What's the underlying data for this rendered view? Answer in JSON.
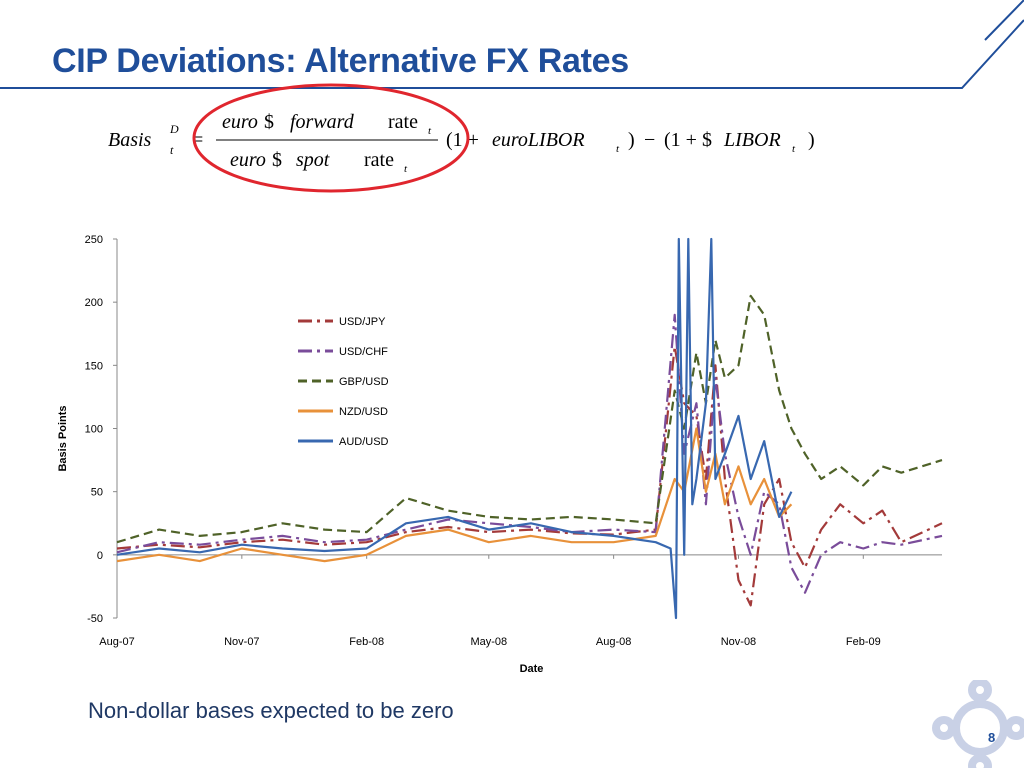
{
  "slide": {
    "title": "CIP Deviations: Alternative FX Rates",
    "caption": "Non-dollar bases expected to be zero",
    "page_number": "8"
  },
  "formula": {
    "lhs_main": "Basis",
    "lhs_sup": "D",
    "lhs_sub": "t",
    "equals": "=",
    "num_euro": "euro",
    "num_dollar": "$",
    "num_forward": "forward",
    "num_rate": "rate",
    "num_sub": "t",
    "den_euro": "euro",
    "den_dollar": "$",
    "den_spot": "spot",
    "den_rate": "rate",
    "den_sub": "t",
    "mid_open": "(1 + ",
    "mid_euro": "euroLIBOR",
    "mid_sub": "t",
    "mid_close": ")",
    "minus": "−",
    "right_open": "(1 + $",
    "right_libor": "LIBOR",
    "right_sub": "t",
    "right_close": ")"
  },
  "colors": {
    "title": "#1f4e9a",
    "header_rule": "#1f4e9a",
    "highlight_ellipse": "#e0262e"
  },
  "chart_data": {
    "type": "line",
    "xlabel": "Date",
    "ylabel": "Basis Points",
    "ylim": [
      -50,
      250
    ],
    "yticks": [
      -50,
      0,
      50,
      100,
      150,
      200,
      250
    ],
    "xlim": [
      "2007-08-01",
      "2009-03-31"
    ],
    "xticks": [
      {
        "date": "2007-08-01",
        "label": "Aug-07"
      },
      {
        "date": "2007-11-01",
        "label": "Nov-07"
      },
      {
        "date": "2008-02-01",
        "label": "Feb-08"
      },
      {
        "date": "2008-05-01",
        "label": "May-08"
      },
      {
        "date": "2008-08-01",
        "label": "Aug-08"
      },
      {
        "date": "2008-11-01",
        "label": "Nov-08"
      },
      {
        "date": "2009-02-01",
        "label": "Feb-09"
      }
    ],
    "grid": false,
    "legend_position": "upper-center",
    "series": [
      {
        "name": "USD/JPY",
        "color": "#a33a3a",
        "dash": "14,5,3,5",
        "points": [
          [
            "2007-08-01",
            5
          ],
          [
            "2007-09-01",
            8
          ],
          [
            "2007-10-01",
            6
          ],
          [
            "2007-11-01",
            10
          ],
          [
            "2007-12-01",
            12
          ],
          [
            "2008-01-01",
            8
          ],
          [
            "2008-02-01",
            10
          ],
          [
            "2008-03-01",
            18
          ],
          [
            "2008-04-01",
            22
          ],
          [
            "2008-05-01",
            18
          ],
          [
            "2008-06-01",
            20
          ],
          [
            "2008-07-01",
            17
          ],
          [
            "2008-08-01",
            16
          ],
          [
            "2008-09-01",
            20
          ],
          [
            "2008-09-15",
            165
          ],
          [
            "2008-09-22",
            120
          ],
          [
            "2008-10-01",
            110
          ],
          [
            "2008-10-08",
            60
          ],
          [
            "2008-10-15",
            150
          ],
          [
            "2008-10-22",
            60
          ],
          [
            "2008-11-01",
            -20
          ],
          [
            "2008-11-10",
            -40
          ],
          [
            "2008-11-20",
            40
          ],
          [
            "2008-12-01",
            60
          ],
          [
            "2008-12-10",
            10
          ],
          [
            "2008-12-20",
            -10
          ],
          [
            "2009-01-01",
            20
          ],
          [
            "2009-01-15",
            40
          ],
          [
            "2009-02-01",
            25
          ],
          [
            "2009-02-15",
            35
          ],
          [
            "2009-03-01",
            10
          ],
          [
            "2009-03-31",
            25
          ]
        ]
      },
      {
        "name": "USD/CHF",
        "color": "#7a4c9a",
        "dash": "14,5,3,5",
        "points": [
          [
            "2007-08-01",
            2
          ],
          [
            "2007-09-01",
            10
          ],
          [
            "2007-10-01",
            8
          ],
          [
            "2007-11-01",
            12
          ],
          [
            "2007-12-01",
            15
          ],
          [
            "2008-01-01",
            10
          ],
          [
            "2008-02-01",
            12
          ],
          [
            "2008-03-01",
            20
          ],
          [
            "2008-04-01",
            28
          ],
          [
            "2008-05-01",
            25
          ],
          [
            "2008-06-01",
            22
          ],
          [
            "2008-07-01",
            18
          ],
          [
            "2008-08-01",
            20
          ],
          [
            "2008-09-01",
            18
          ],
          [
            "2008-09-15",
            190
          ],
          [
            "2008-09-22",
            80
          ],
          [
            "2008-10-01",
            120
          ],
          [
            "2008-10-08",
            40
          ],
          [
            "2008-10-15",
            140
          ],
          [
            "2008-10-22",
            80
          ],
          [
            "2008-11-01",
            30
          ],
          [
            "2008-11-10",
            0
          ],
          [
            "2008-11-20",
            50
          ],
          [
            "2008-12-01",
            40
          ],
          [
            "2008-12-10",
            -10
          ],
          [
            "2008-12-20",
            -30
          ],
          [
            "2009-01-01",
            0
          ],
          [
            "2009-01-15",
            10
          ],
          [
            "2009-02-01",
            5
          ],
          [
            "2009-02-15",
            10
          ],
          [
            "2009-03-01",
            8
          ],
          [
            "2009-03-31",
            15
          ]
        ]
      },
      {
        "name": "GBP/USD",
        "color": "#4f6228",
        "dash": "9,5",
        "points": [
          [
            "2007-08-01",
            10
          ],
          [
            "2007-09-01",
            20
          ],
          [
            "2007-10-01",
            15
          ],
          [
            "2007-11-01",
            18
          ],
          [
            "2007-12-01",
            25
          ],
          [
            "2008-01-01",
            20
          ],
          [
            "2008-02-01",
            18
          ],
          [
            "2008-03-01",
            45
          ],
          [
            "2008-04-01",
            35
          ],
          [
            "2008-05-01",
            30
          ],
          [
            "2008-06-01",
            28
          ],
          [
            "2008-07-01",
            30
          ],
          [
            "2008-08-01",
            28
          ],
          [
            "2008-09-01",
            25
          ],
          [
            "2008-09-15",
            130
          ],
          [
            "2008-09-22",
            100
          ],
          [
            "2008-10-01",
            160
          ],
          [
            "2008-10-08",
            120
          ],
          [
            "2008-10-15",
            170
          ],
          [
            "2008-10-22",
            140
          ],
          [
            "2008-11-01",
            150
          ],
          [
            "2008-11-10",
            205
          ],
          [
            "2008-11-20",
            190
          ],
          [
            "2008-12-01",
            130
          ],
          [
            "2008-12-10",
            100
          ],
          [
            "2008-12-20",
            80
          ],
          [
            "2009-01-01",
            60
          ],
          [
            "2009-01-15",
            70
          ],
          [
            "2009-02-01",
            55
          ],
          [
            "2009-02-15",
            70
          ],
          [
            "2009-03-01",
            65
          ],
          [
            "2009-03-31",
            75
          ]
        ]
      },
      {
        "name": "NZD/USD",
        "color": "#e8913a",
        "dash": "",
        "points": [
          [
            "2007-08-01",
            -5
          ],
          [
            "2007-09-01",
            0
          ],
          [
            "2007-10-01",
            -5
          ],
          [
            "2007-11-01",
            5
          ],
          [
            "2007-12-01",
            0
          ],
          [
            "2008-01-01",
            -5
          ],
          [
            "2008-02-01",
            0
          ],
          [
            "2008-03-01",
            15
          ],
          [
            "2008-04-01",
            20
          ],
          [
            "2008-05-01",
            10
          ],
          [
            "2008-06-01",
            15
          ],
          [
            "2008-07-01",
            10
          ],
          [
            "2008-08-01",
            10
          ],
          [
            "2008-09-01",
            15
          ],
          [
            "2008-09-15",
            60
          ],
          [
            "2008-09-22",
            50
          ],
          [
            "2008-10-01",
            100
          ],
          [
            "2008-10-08",
            50
          ],
          [
            "2008-10-15",
            80
          ],
          [
            "2008-10-22",
            40
          ],
          [
            "2008-11-01",
            70
          ],
          [
            "2008-11-10",
            40
          ],
          [
            "2008-11-20",
            60
          ],
          [
            "2008-12-01",
            30
          ],
          [
            "2008-12-10",
            40
          ]
        ]
      },
      {
        "name": "AUD/USD",
        "color": "#3868b0",
        "dash": "",
        "points": [
          [
            "2007-08-01",
            0
          ],
          [
            "2007-09-01",
            5
          ],
          [
            "2007-10-01",
            2
          ],
          [
            "2007-11-01",
            8
          ],
          [
            "2007-12-01",
            5
          ],
          [
            "2008-01-01",
            3
          ],
          [
            "2008-02-01",
            5
          ],
          [
            "2008-03-01",
            25
          ],
          [
            "2008-04-01",
            30
          ],
          [
            "2008-05-01",
            20
          ],
          [
            "2008-06-01",
            25
          ],
          [
            "2008-07-01",
            18
          ],
          [
            "2008-08-01",
            15
          ],
          [
            "2008-09-01",
            10
          ],
          [
            "2008-09-12",
            5
          ],
          [
            "2008-09-16",
            -50
          ],
          [
            "2008-09-18",
            250
          ],
          [
            "2008-09-22",
            0
          ],
          [
            "2008-09-25",
            250
          ],
          [
            "2008-09-28",
            40
          ],
          [
            "2008-10-01",
            60
          ],
          [
            "2008-10-08",
            120
          ],
          [
            "2008-10-12",
            250
          ],
          [
            "2008-10-15",
            60
          ],
          [
            "2008-10-22",
            80
          ],
          [
            "2008-11-01",
            110
          ],
          [
            "2008-11-10",
            60
          ],
          [
            "2008-11-20",
            90
          ],
          [
            "2008-12-01",
            30
          ],
          [
            "2008-12-10",
            50
          ]
        ]
      }
    ]
  }
}
